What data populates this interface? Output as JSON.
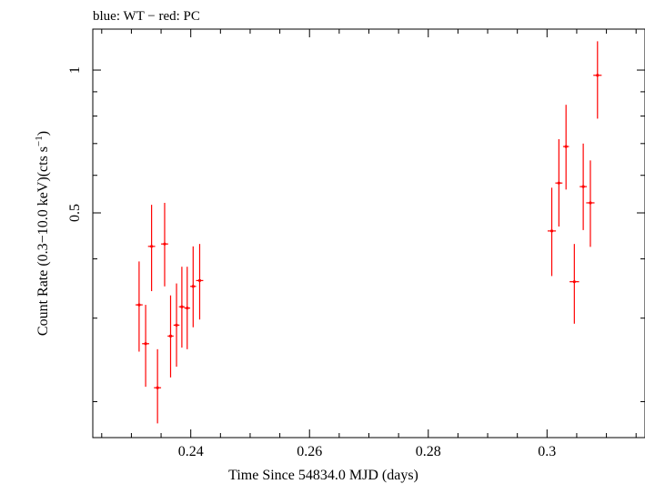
{
  "chart_data": {
    "type": "scatter",
    "title": "blue: WT − red: PC",
    "xlabel": "Time Since 54834.0 MJD (days)",
    "ylabel_main": "Count Rate (0.3−10.0 keV)(cts s",
    "ylabel_sup": "−1",
    "ylabel_end": ")",
    "xlim": [
      0.2235,
      0.3165
    ],
    "ylim": [
      0.168,
      1.22
    ],
    "yscale": "log",
    "xticks": [
      {
        "value": 0.24,
        "label": "0.24"
      },
      {
        "value": 0.26,
        "label": "0.26"
      },
      {
        "value": 0.28,
        "label": "0.28"
      },
      {
        "value": 0.3,
        "label": "0.3"
      }
    ],
    "yticks_major": [
      {
        "value": 0.5,
        "label": "0.5"
      },
      {
        "value": 1.0,
        "label": "1"
      }
    ],
    "yticks_minor": [
      0.2,
      0.3,
      0.4,
      0.6,
      0.7,
      0.8,
      0.9
    ],
    "series": [
      {
        "color": "#ff0000",
        "points": [
          {
            "x": 0.2313,
            "xerr": 0.0006,
            "y": 0.32,
            "ylo": 0.255,
            "yhi": 0.395
          },
          {
            "x": 0.2324,
            "xerr": 0.0006,
            "y": 0.265,
            "ylo": 0.215,
            "yhi": 0.32
          },
          {
            "x": 0.2334,
            "xerr": 0.0006,
            "y": 0.425,
            "ylo": 0.342,
            "yhi": 0.52
          },
          {
            "x": 0.2344,
            "xerr": 0.0006,
            "y": 0.214,
            "ylo": 0.18,
            "yhi": 0.258
          },
          {
            "x": 0.2356,
            "xerr": 0.0006,
            "y": 0.43,
            "ylo": 0.35,
            "yhi": 0.525
          },
          {
            "x": 0.2366,
            "xerr": 0.0005,
            "y": 0.275,
            "ylo": 0.225,
            "yhi": 0.335
          },
          {
            "x": 0.2376,
            "xerr": 0.0005,
            "y": 0.29,
            "ylo": 0.237,
            "yhi": 0.355
          },
          {
            "x": 0.2385,
            "xerr": 0.0005,
            "y": 0.317,
            "ylo": 0.26,
            "yhi": 0.385
          },
          {
            "x": 0.2394,
            "xerr": 0.0005,
            "y": 0.315,
            "ylo": 0.258,
            "yhi": 0.385
          },
          {
            "x": 0.2404,
            "xerr": 0.0005,
            "y": 0.35,
            "ylo": 0.287,
            "yhi": 0.425
          },
          {
            "x": 0.2415,
            "xerr": 0.0006,
            "y": 0.36,
            "ylo": 0.298,
            "yhi": 0.43
          },
          {
            "x": 0.3008,
            "xerr": 0.0007,
            "y": 0.458,
            "ylo": 0.368,
            "yhi": 0.565
          },
          {
            "x": 0.302,
            "xerr": 0.0006,
            "y": 0.578,
            "ylo": 0.468,
            "yhi": 0.715
          },
          {
            "x": 0.3032,
            "xerr": 0.0005,
            "y": 0.69,
            "ylo": 0.56,
            "yhi": 0.845
          },
          {
            "x": 0.3046,
            "xerr": 0.0008,
            "y": 0.358,
            "ylo": 0.292,
            "yhi": 0.43
          },
          {
            "x": 0.3061,
            "xerr": 0.0006,
            "y": 0.568,
            "ylo": 0.46,
            "yhi": 0.7
          },
          {
            "x": 0.3073,
            "xerr": 0.0007,
            "y": 0.525,
            "ylo": 0.424,
            "yhi": 0.645
          },
          {
            "x": 0.3085,
            "xerr": 0.0007,
            "y": 0.975,
            "ylo": 0.79,
            "yhi": 1.15
          }
        ]
      }
    ]
  }
}
